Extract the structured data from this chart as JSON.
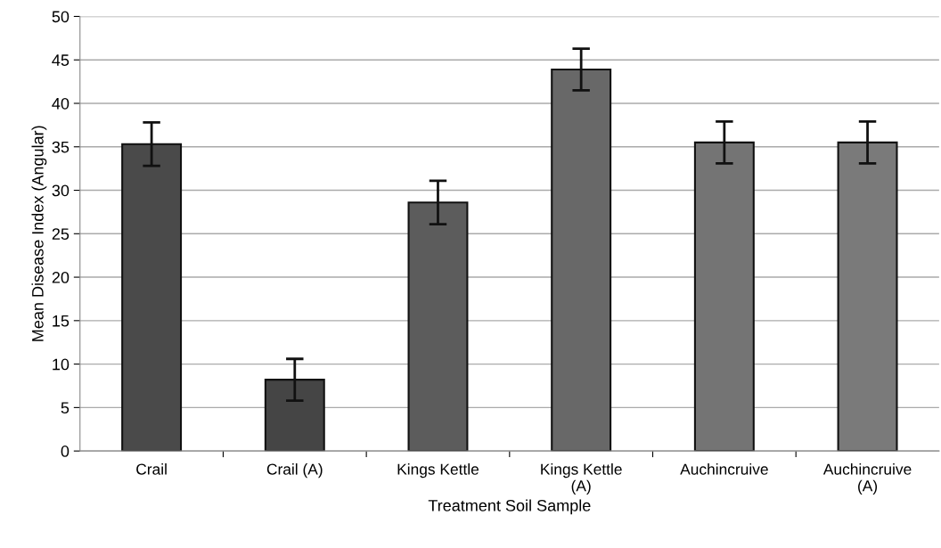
{
  "chart_data": {
    "type": "bar",
    "xlabel": "Treatment Soil Sample",
    "ylabel": "Mean Disease Index (Angular)",
    "categories": [
      "Crail",
      "Crail (A)",
      "Kings Kettle",
      "Kings Kettle\n(A)",
      "Auchincruive",
      "Auchincruive\n(A)"
    ],
    "values": [
      35.3,
      8.2,
      28.6,
      43.9,
      35.5,
      35.5
    ],
    "errors": [
      2.5,
      2.4,
      2.5,
      2.4,
      2.4,
      2.4
    ],
    "colors": [
      "#4a4a4a",
      "#454545",
      "#5c5c5c",
      "#686868",
      "#747474",
      "#7a7a7a"
    ],
    "ylim": [
      0,
      50
    ],
    "yticks": [
      0,
      5,
      10,
      15,
      20,
      25,
      30,
      35,
      40,
      45,
      50
    ],
    "grid": "y"
  }
}
